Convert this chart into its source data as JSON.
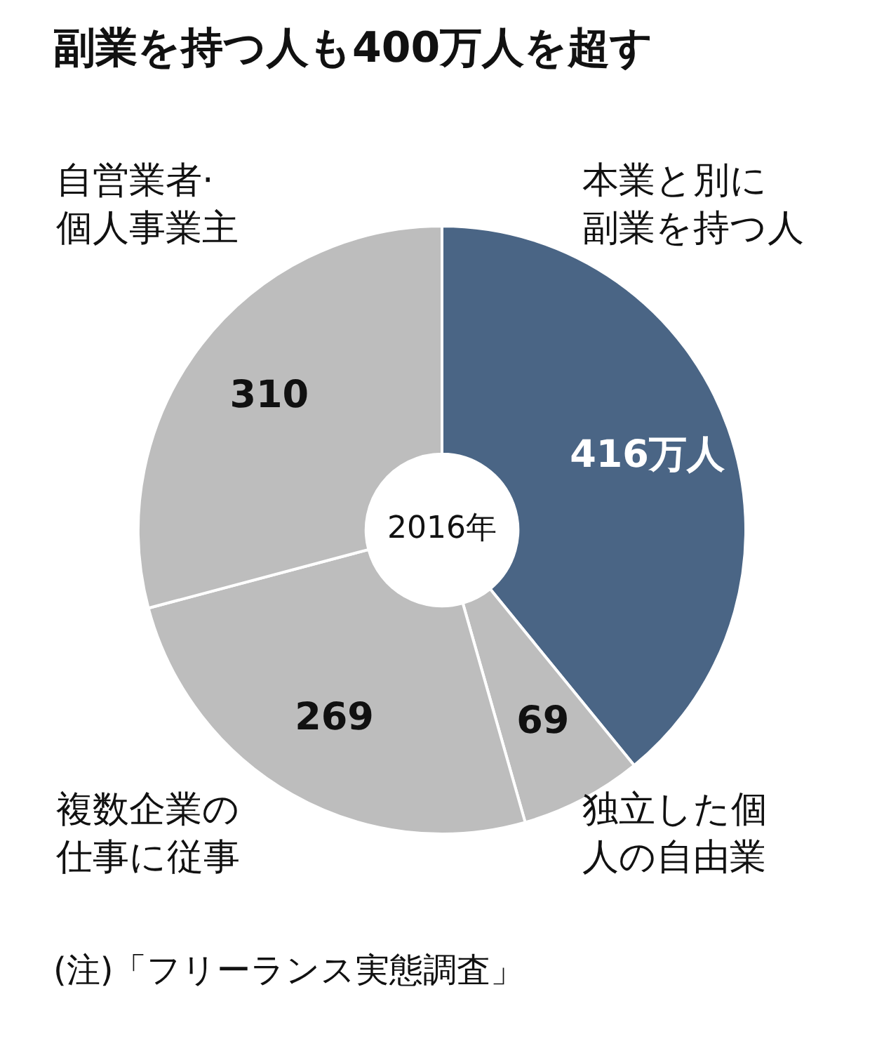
{
  "chart_data": {
    "type": "donut",
    "title": "副業を持つ人も400万人を超す",
    "categories": [
      "本業と別に副業を持つ人",
      "独立した個人の自由業",
      "複数企業の仕事に従事",
      "自営業者·個人事業主"
    ],
    "values": [
      416,
      69,
      269,
      310
    ],
    "colors": [
      "#4a6585",
      "#bdbdbd",
      "#bdbdbd",
      "#bdbdbd"
    ],
    "value_labels": [
      "416万人",
      "69",
      "269",
      "310"
    ],
    "annotations": [
      "2016年",
      "(注)「フリーランス実態調査」"
    ]
  }
}
